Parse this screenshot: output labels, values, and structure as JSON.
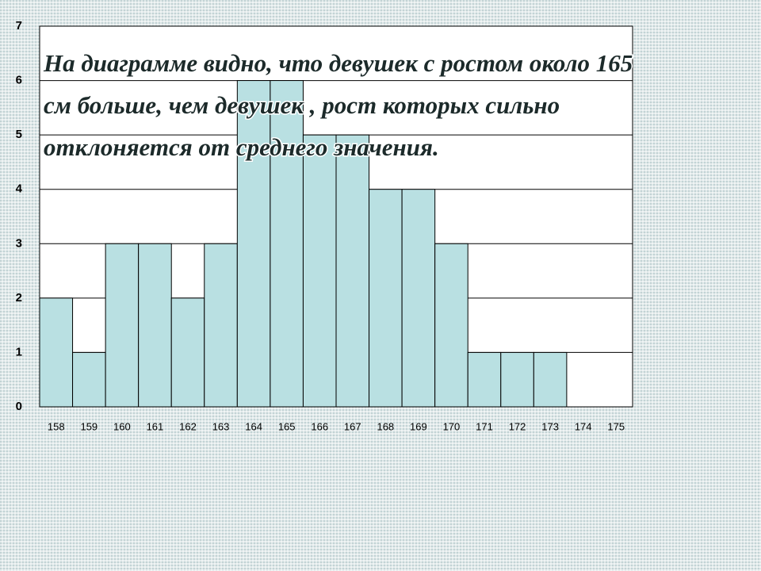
{
  "chart_data": {
    "type": "bar",
    "categories": [
      "158",
      "159",
      "160",
      "161",
      "162",
      "163",
      "164",
      "165",
      "166",
      "167",
      "168",
      "169",
      "170",
      "171",
      "172",
      "173",
      "174",
      "175"
    ],
    "values": [
      2,
      1,
      3,
      3,
      2,
      3,
      6,
      6,
      5,
      5,
      4,
      4,
      3,
      1,
      1,
      1,
      0,
      0
    ],
    "color": "#b9e0e2",
    "ylim": [
      0,
      7
    ],
    "yticks": [
      0,
      1,
      2,
      3,
      4,
      5,
      6,
      7
    ],
    "grid": true,
    "annotation": [
      "На диаграмме видно, что девушек  с ростом около 165",
      "см больше, чем девушек , рост которых сильно",
      "отклоняется от среднего значения."
    ]
  }
}
